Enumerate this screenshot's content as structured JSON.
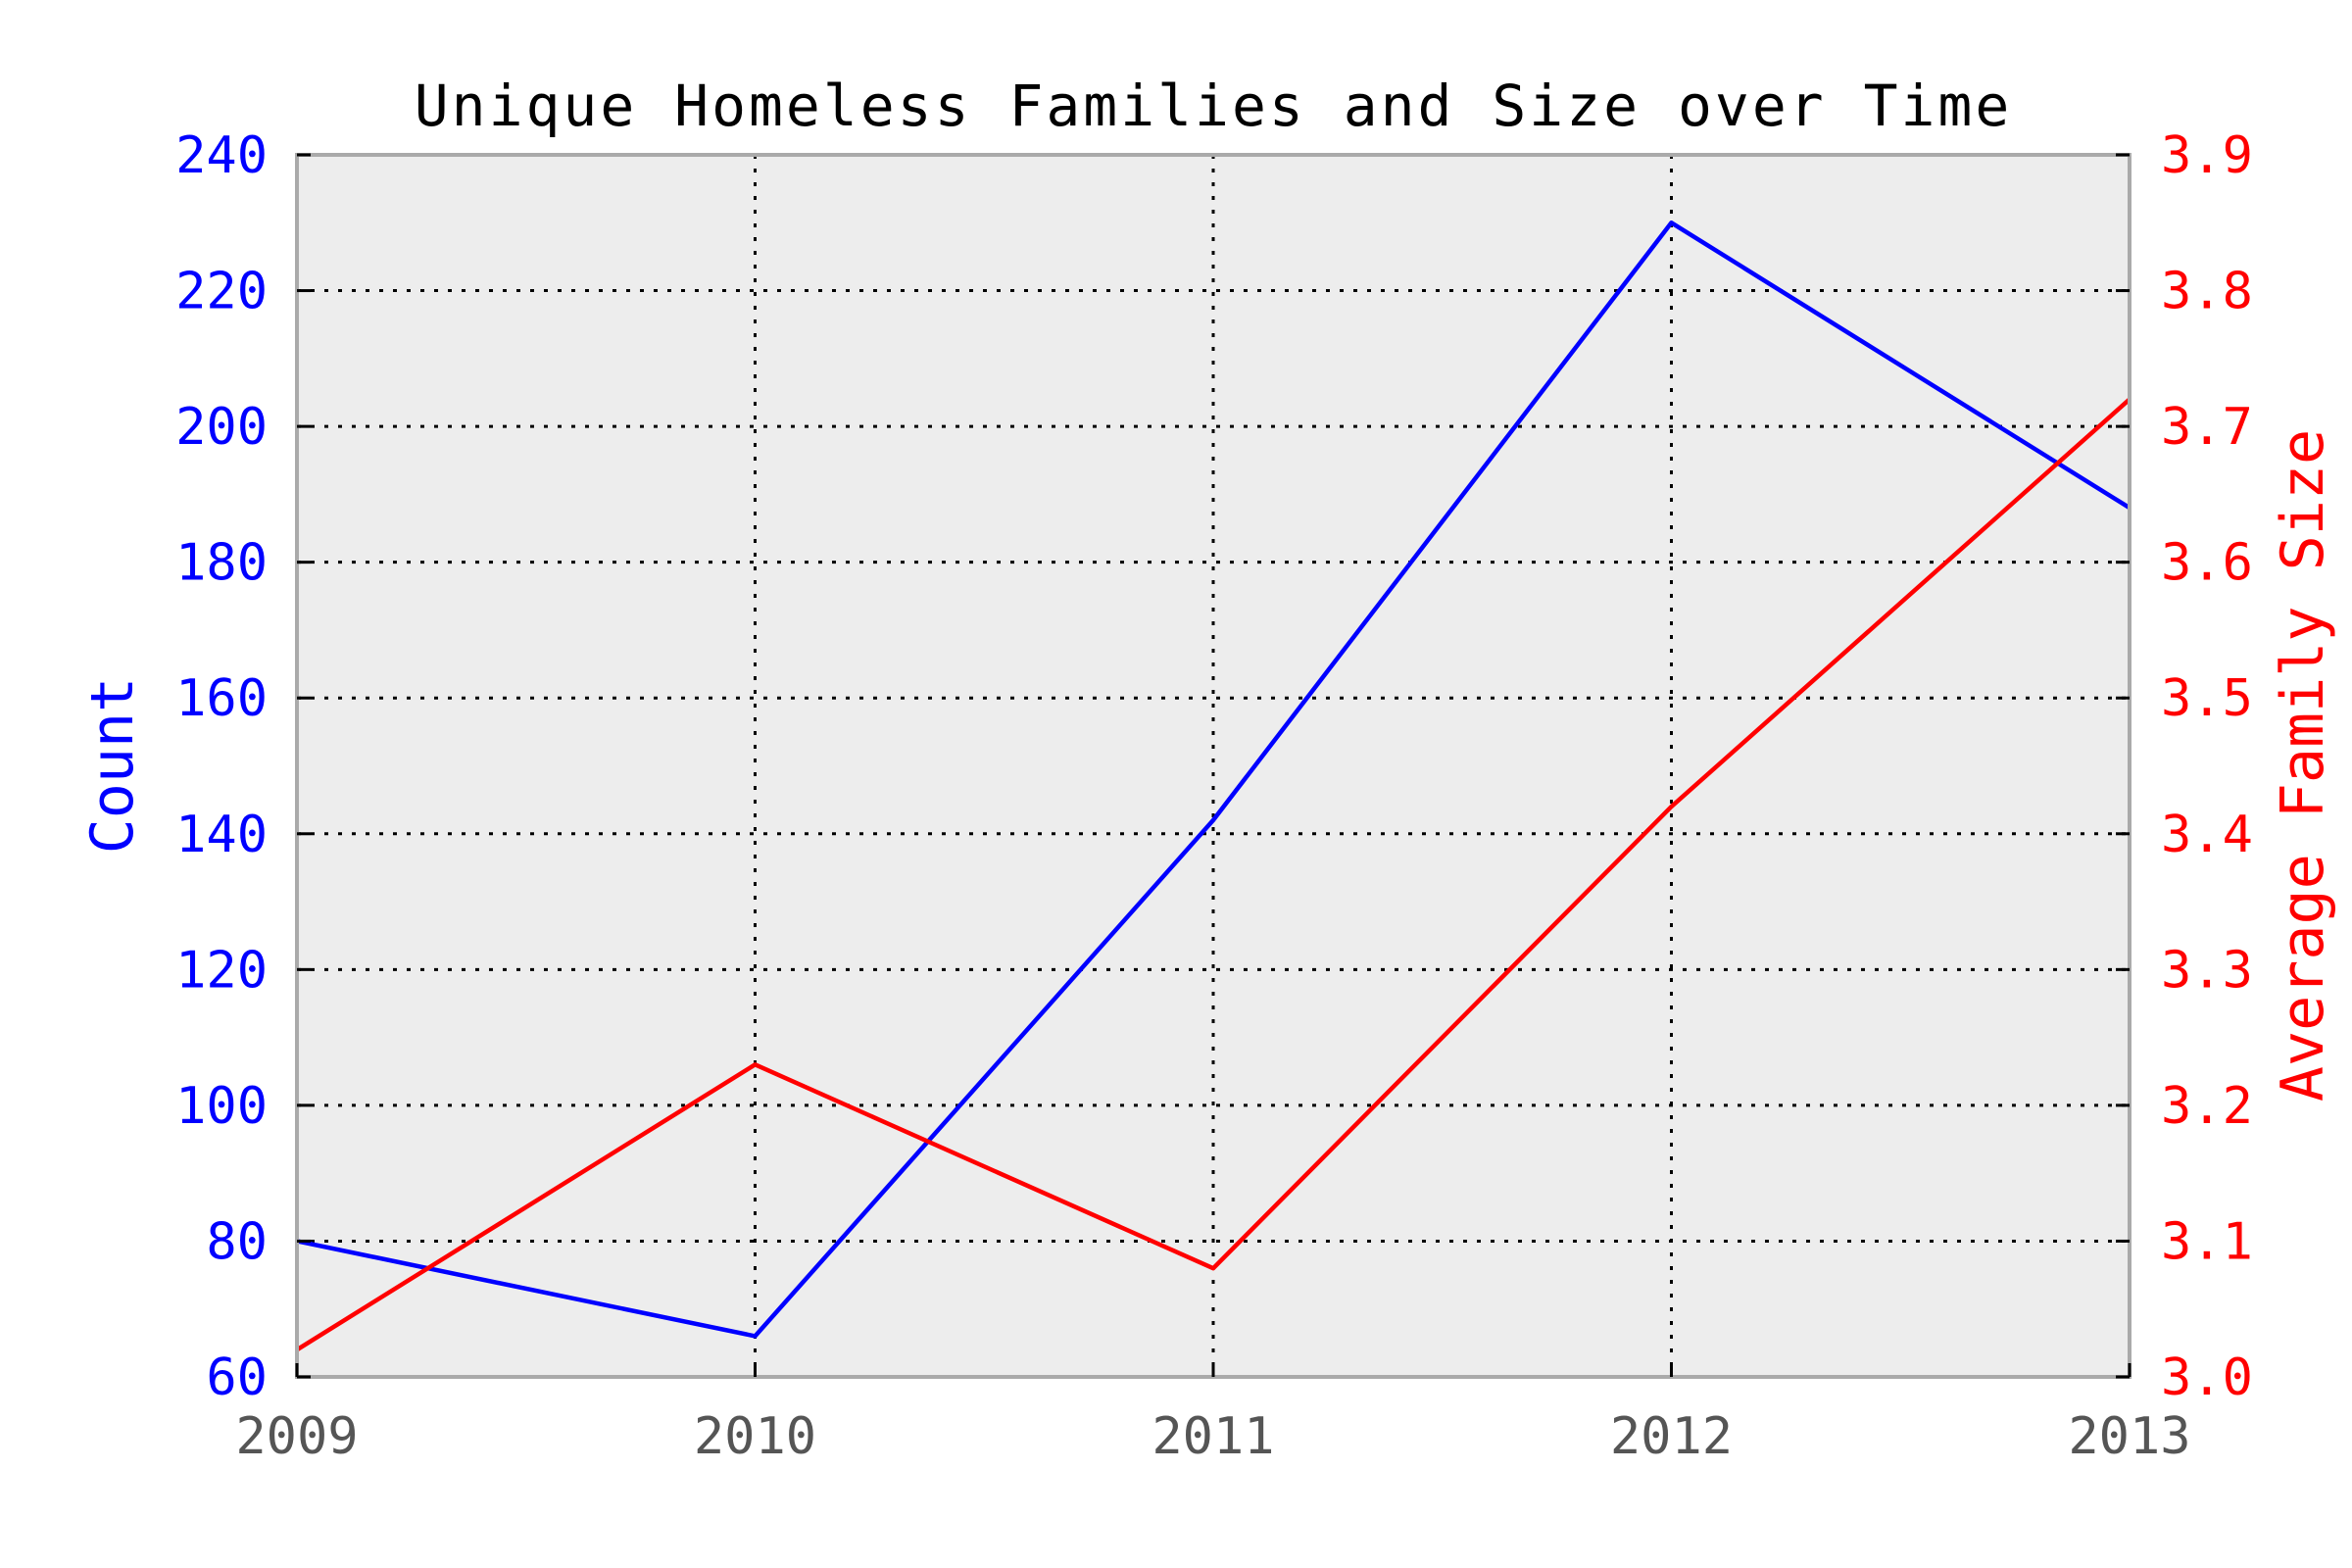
{
  "chart_data": {
    "type": "line",
    "title": "Unique Homeless Families and Size over Time",
    "x": [
      "2009",
      "2010",
      "2011",
      "2012",
      "2013"
    ],
    "xlim": [
      2009,
      2013
    ],
    "series": [
      {
        "name": "Count",
        "axis": "left",
        "color": "#0000ff",
        "values": [
          80,
          66,
          142,
          230,
          188
        ]
      },
      {
        "name": "Average Family Size",
        "axis": "right",
        "color": "#ff0000",
        "values": [
          3.02,
          3.23,
          3.08,
          3.42,
          3.72
        ]
      }
    ],
    "ylabel_left": "Count",
    "ylim_left": [
      60,
      240
    ],
    "yticks_left": [
      "60",
      "80",
      "100",
      "120",
      "140",
      "160",
      "180",
      "200",
      "220",
      "240"
    ],
    "ylabel_right": "Average Family Size",
    "ylim_right": [
      3.0,
      3.9
    ],
    "yticks_right": [
      "3.0",
      "3.1",
      "3.2",
      "3.3",
      "3.4",
      "3.5",
      "3.6",
      "3.7",
      "3.8",
      "3.9"
    ],
    "grid": true,
    "plot_background": "#ededed",
    "xtick_color": "#555555",
    "axis_color": "#aaaaaa"
  }
}
